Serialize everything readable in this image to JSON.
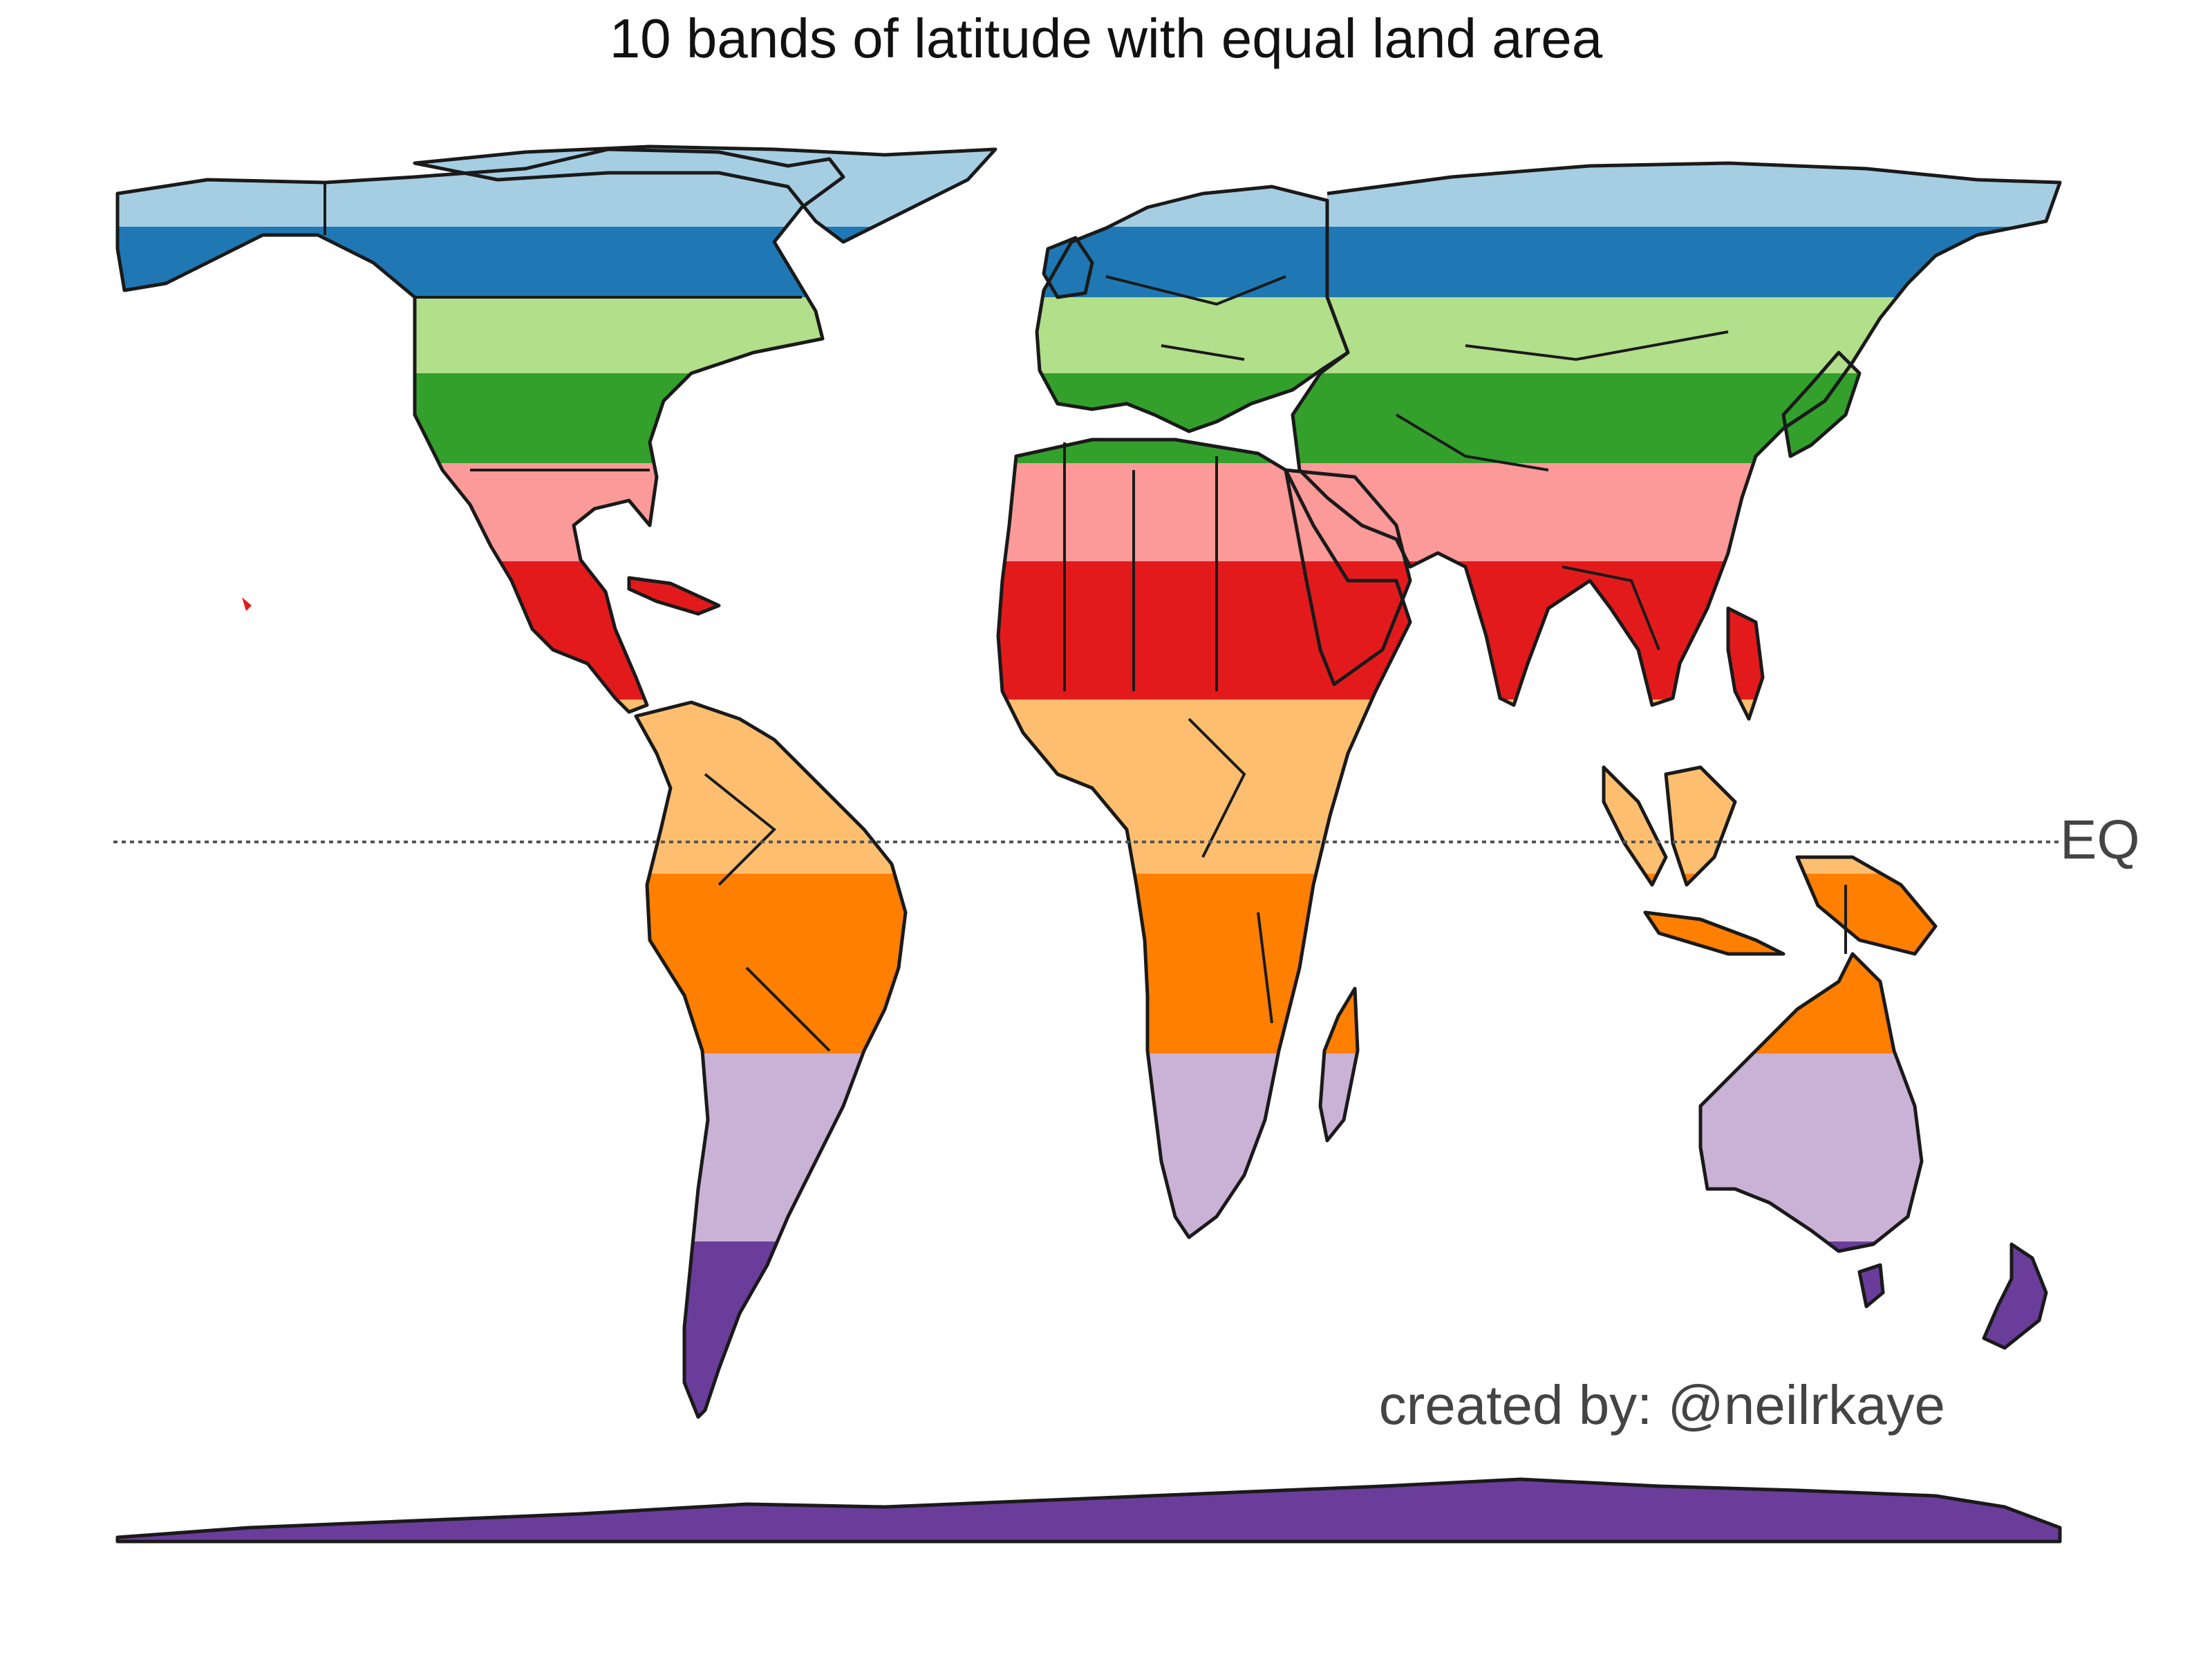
{
  "title": "10 bands of latitude with equal land area",
  "equator_label": "EQ",
  "credit": "created by: @neilrkaye",
  "bands": [
    {
      "order": 1,
      "color": "#a6cee3"
    },
    {
      "order": 2,
      "color": "#1f78b4"
    },
    {
      "order": 3,
      "color": "#b2df8a"
    },
    {
      "order": 4,
      "color": "#33a02c"
    },
    {
      "order": 5,
      "color": "#fb9a99"
    },
    {
      "order": 6,
      "color": "#e31a1c"
    },
    {
      "order": 7,
      "color": "#fdbf6f"
    },
    {
      "order": 8,
      "color": "#ff7f00"
    },
    {
      "order": 9,
      "color": "#cab2d6"
    },
    {
      "order": 10,
      "color": "#6a3d9a"
    }
  ]
}
